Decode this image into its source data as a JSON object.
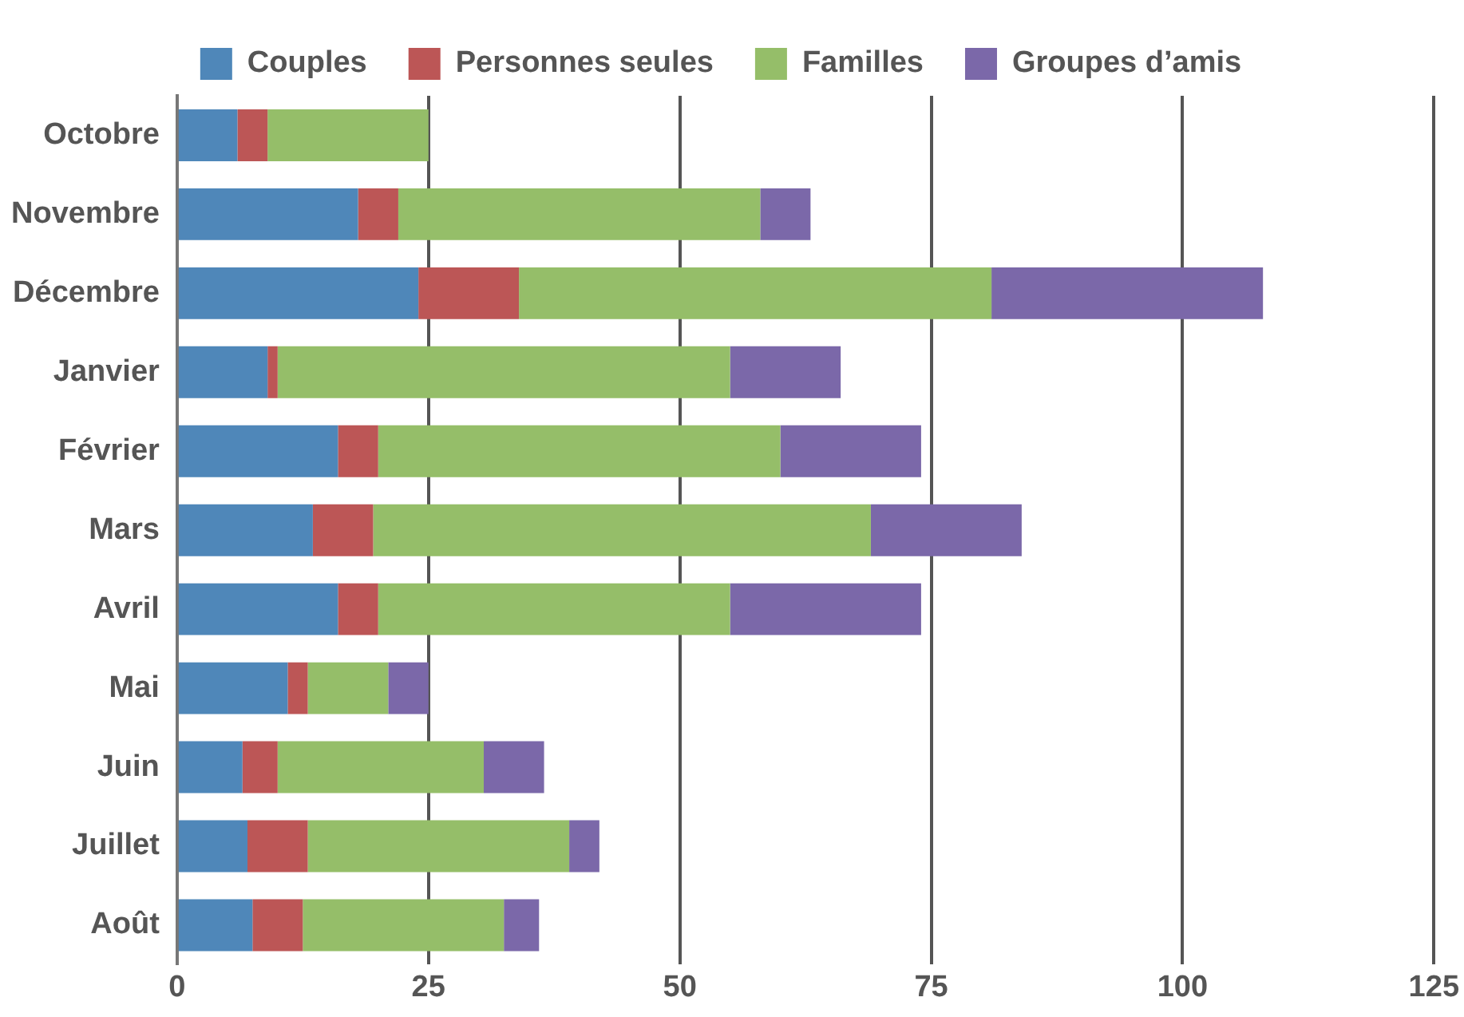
{
  "chart_data": {
    "type": "bar",
    "orientation": "horizontal",
    "stacked": true,
    "categories": [
      "Octobre",
      "Novembre",
      "Décembre",
      "Janvier",
      "Février",
      "Mars",
      "Avril",
      "Mai",
      "Juin",
      "Juillet",
      "Août"
    ],
    "series": [
      {
        "name": "Couples",
        "color": "#4f87b9",
        "values": [
          6,
          18,
          24,
          9,
          16,
          13.5,
          16,
          11,
          6.5,
          7,
          7.5
        ]
      },
      {
        "name": "Personnes seules",
        "color": "#bc5656",
        "values": [
          3,
          4,
          10,
          1,
          4,
          6,
          4,
          2,
          3.5,
          6,
          5
        ]
      },
      {
        "name": "Familles",
        "color": "#95be69",
        "values": [
          16,
          36,
          47,
          45,
          40,
          49.5,
          35,
          8,
          20.5,
          26,
          20
        ]
      },
      {
        "name": "Groupes d’amis",
        "color": "#7b68a9",
        "values": [
          0,
          5,
          27,
          11,
          14,
          15,
          19,
          4,
          6,
          3,
          3.5
        ]
      }
    ],
    "xlim": [
      0,
      125
    ],
    "xticks": [
      0,
      25,
      50,
      75,
      100,
      125
    ],
    "grid": "x",
    "legend": "top"
  }
}
